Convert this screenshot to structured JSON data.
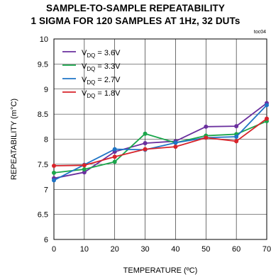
{
  "chart_data": {
    "type": "line",
    "title": "SAMPLE-TO-SAMPLE REPEATABILITY",
    "subtitle": "1 SIGMA FOR 120 SAMPLES AT 1Hz, 32 DUTs",
    "code": "toc04",
    "xlabel": "TEMPERATURE (ºC)",
    "ylabel": "REPEATABILITY (m°C)",
    "xlim": [
      0,
      70
    ],
    "ylim": [
      6,
      10
    ],
    "xticks": [
      "0",
      "10",
      "20",
      "30",
      "40",
      "50",
      "60",
      "70"
    ],
    "yticks": [
      "6",
      "6.5",
      "7",
      "7.5",
      "8",
      "8.5",
      "9",
      "9.5",
      "10"
    ],
    "grid": true,
    "legend_position": "top-left",
    "x": [
      0,
      10,
      20,
      30,
      40,
      50,
      60,
      70
    ],
    "series": [
      {
        "name": "V",
        "sub": "DQ",
        "suffix": " = 3.6V",
        "color": "#6a2f9e",
        "values": [
          7.22,
          7.34,
          7.75,
          7.92,
          7.96,
          8.25,
          8.26,
          8.72
        ]
      },
      {
        "name": "V",
        "sub": "DQ",
        "suffix": " = 3.3V",
        "color": "#1aa64b",
        "values": [
          7.33,
          7.4,
          7.55,
          8.11,
          7.93,
          8.07,
          8.1,
          8.36
        ]
      },
      {
        "name": "V",
        "sub": "DQ",
        "suffix": " = 2.7V",
        "color": "#1f74c6",
        "values": [
          7.18,
          7.49,
          7.8,
          7.79,
          7.93,
          8.03,
          8.05,
          8.68
        ]
      },
      {
        "name": "V",
        "sub": "DQ",
        "suffix": " = 1.8V",
        "color": "#d7232a",
        "values": [
          7.47,
          7.48,
          7.65,
          7.8,
          7.85,
          8.03,
          7.96,
          8.41
        ]
      }
    ]
  }
}
